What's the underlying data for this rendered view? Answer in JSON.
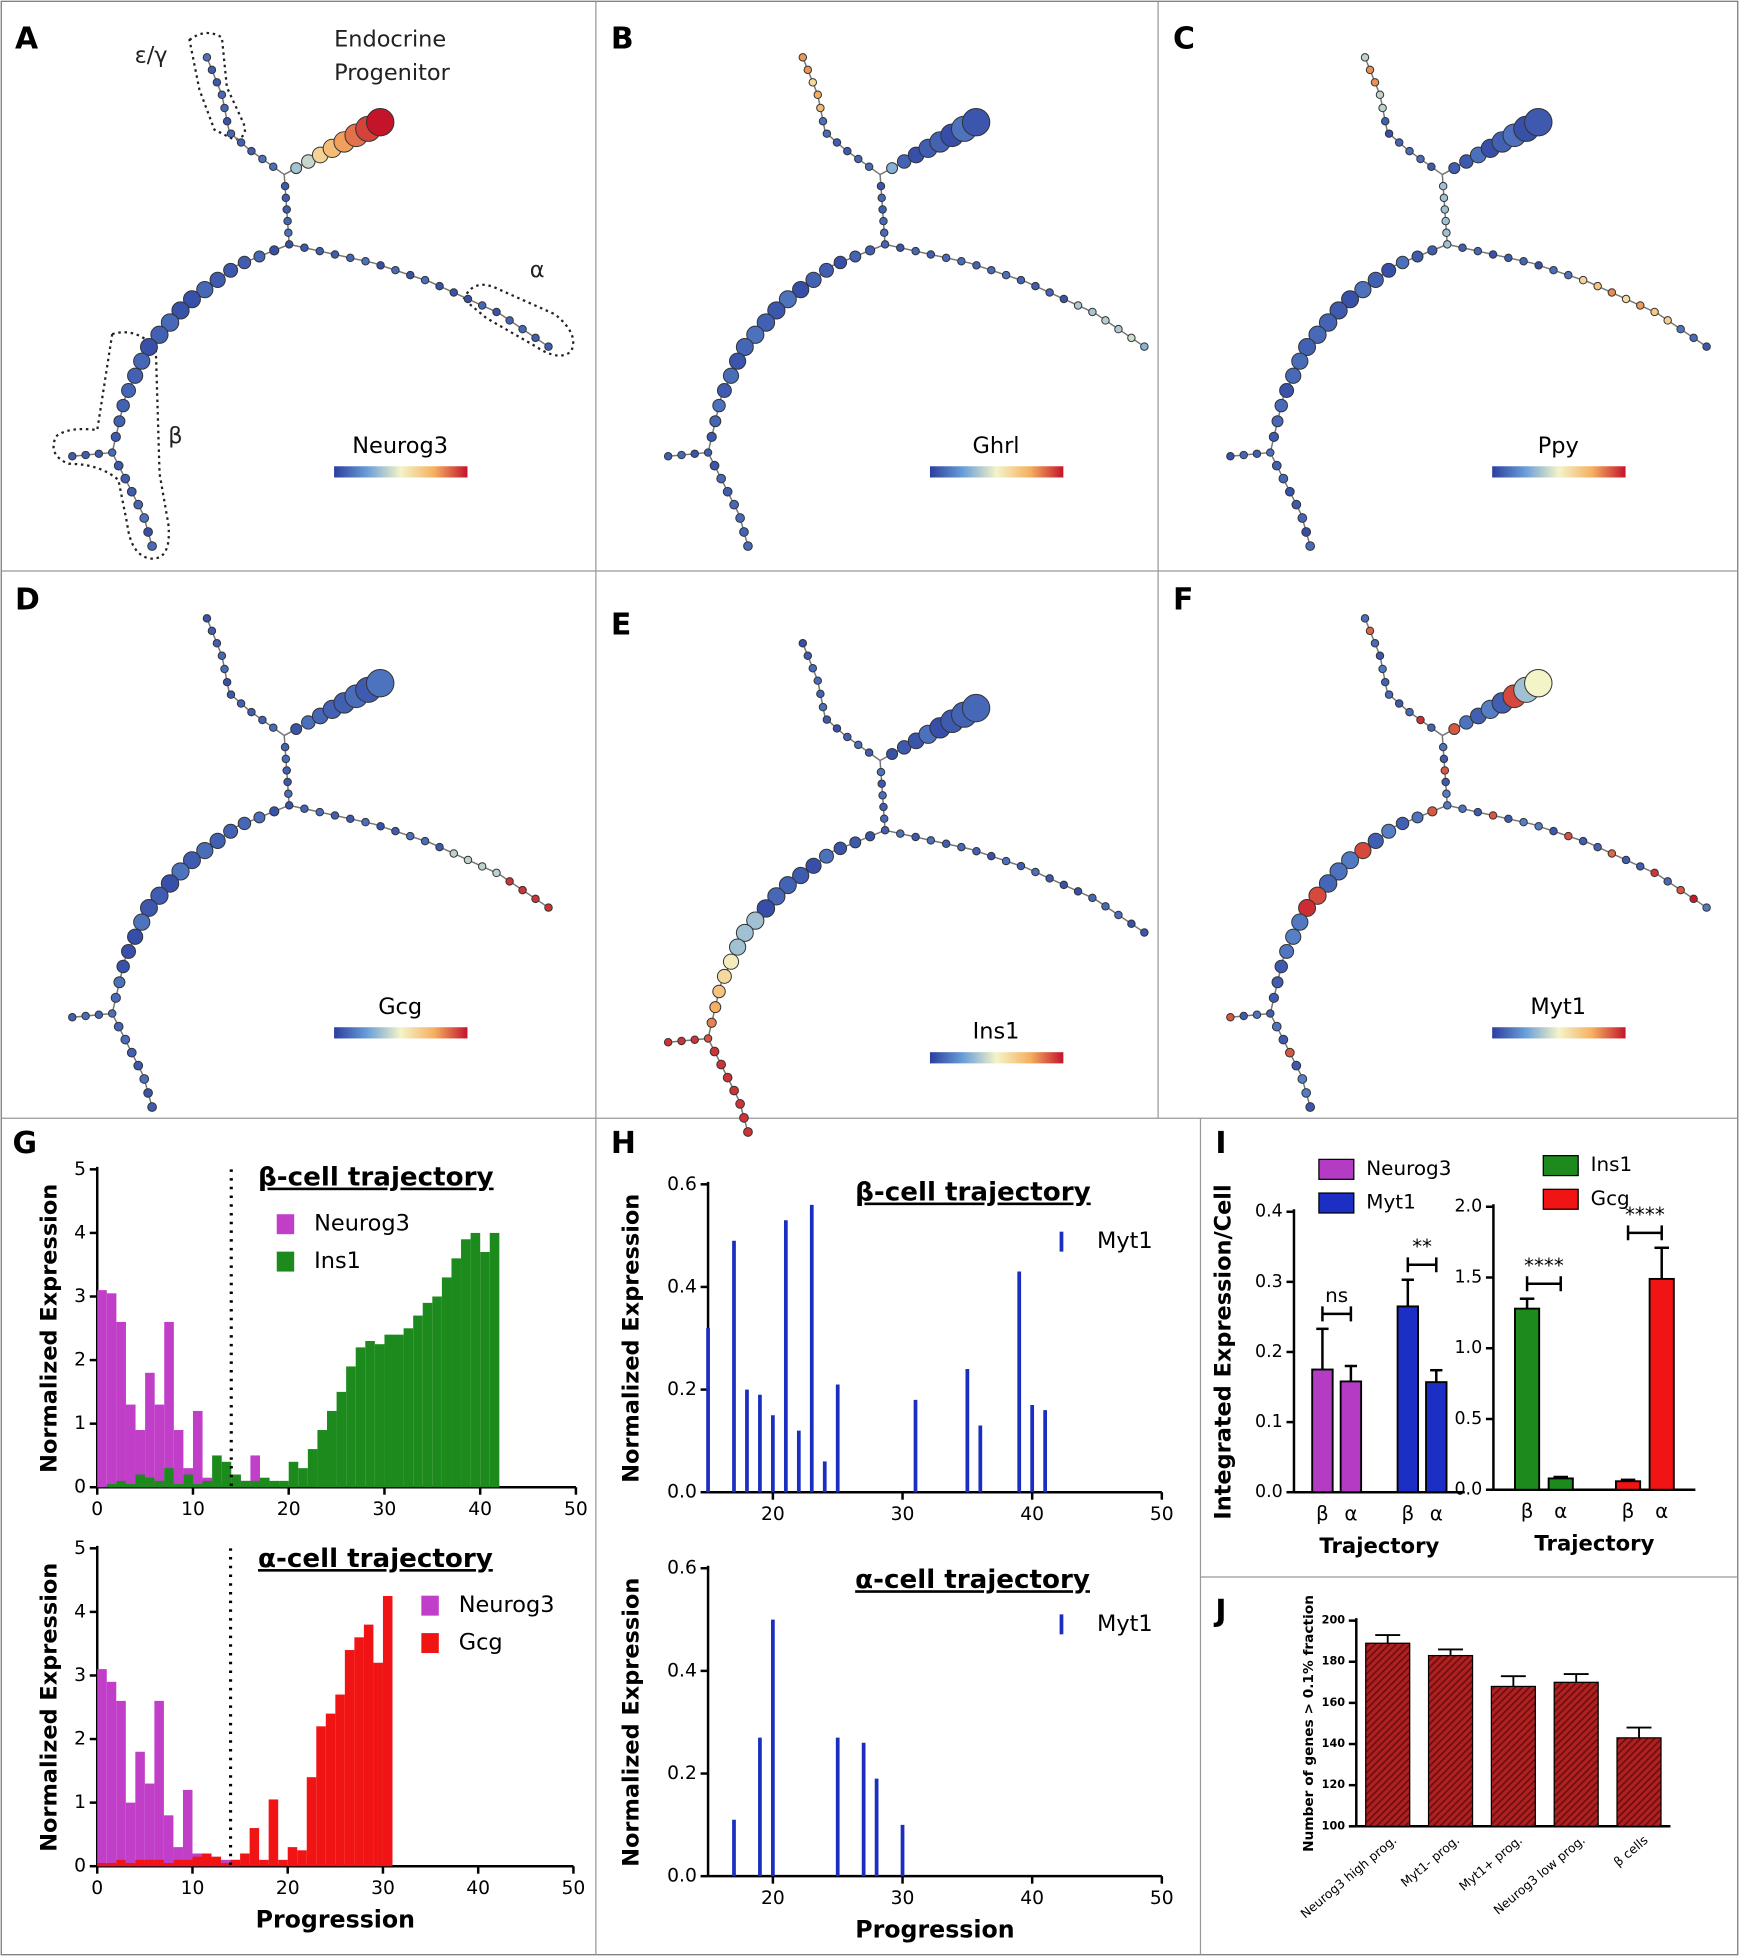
{
  "panels": [
    {
      "label": "A",
      "gene": "Neurog3"
    },
    {
      "label": "B",
      "gene": "Ghrl"
    },
    {
      "label": "C",
      "gene": "Ppy"
    },
    {
      "label": "D",
      "gene": "Gcg"
    },
    {
      "label": "E",
      "gene": "Ins1"
    },
    {
      "label": "F",
      "gene": "Myt1"
    }
  ],
  "annotations": {
    "eps_gamma": "ε/γ",
    "progenitor": [
      "Endocrine",
      "Progenitor"
    ],
    "alpha": "α",
    "beta": "β"
  },
  "chart_panels": [
    "G",
    "H",
    "I",
    "J"
  ],
  "chart_data": [
    {
      "type": "bar",
      "title": "β-cell trajectory",
      "ylabel": "Normalized Expression",
      "x": [
        0,
        1,
        2,
        3,
        4,
        5,
        6,
        7,
        8,
        9,
        10,
        11,
        12,
        13,
        14,
        15,
        16,
        17,
        18,
        19,
        20,
        21,
        22,
        23,
        24,
        25,
        26,
        27,
        28,
        29,
        30,
        31,
        32,
        33,
        34,
        35,
        36,
        37,
        38,
        39,
        40,
        41
      ],
      "series": [
        {
          "name": "Neurog3",
          "color": "#c03ec8",
          "values": [
            3.1,
            3.05,
            2.6,
            1.3,
            0.9,
            1.8,
            1.3,
            2.6,
            0.9,
            0.3,
            1.2,
            0.15,
            0.1,
            0.05,
            0.2,
            0.1,
            0.5,
            0.1,
            0.05,
            0.05,
            0,
            0,
            0,
            0,
            0,
            0,
            0,
            0,
            0,
            0,
            0,
            0,
            0,
            0,
            0,
            0,
            0,
            0,
            0,
            0,
            0,
            0
          ]
        },
        {
          "name": "Ins1",
          "color": "#1c8a1c",
          "values": [
            0,
            0.05,
            0.1,
            0.05,
            0.2,
            0.15,
            0.1,
            0.3,
            0.05,
            0.2,
            0.05,
            0.1,
            0.5,
            0.4,
            0.2,
            0.1,
            0.1,
            0.15,
            0.1,
            0.1,
            0.4,
            0.3,
            0.6,
            0.9,
            1.2,
            1.5,
            1.9,
            2.2,
            2.3,
            2.25,
            2.4,
            2.4,
            2.5,
            2.7,
            2.9,
            3.0,
            3.3,
            3.6,
            3.9,
            4.0,
            3.7,
            4.0
          ]
        }
      ],
      "xlim": [
        0,
        50
      ],
      "xticks": [
        0,
        10,
        20,
        30,
        40,
        50
      ],
      "ylim": [
        0,
        5
      ],
      "yticks": [
        0,
        1,
        2,
        3,
        4,
        5
      ],
      "vline": 14
    },
    {
      "type": "bar",
      "title": "α-cell trajectory",
      "ylabel": "Normalized Expression",
      "xlabel": "Progression",
      "x": [
        0,
        1,
        2,
        3,
        4,
        5,
        6,
        7,
        8,
        9,
        10,
        11,
        12,
        13,
        14,
        15,
        16,
        17,
        18,
        19,
        20,
        21,
        22,
        23,
        24,
        25,
        26,
        27,
        28,
        29,
        30
      ],
      "series": [
        {
          "name": "Neurog3",
          "color": "#c03ec8",
          "values": [
            3.1,
            2.9,
            2.6,
            1.0,
            1.8,
            1.3,
            2.6,
            0.8,
            0.3,
            1.2,
            0.2,
            0.1,
            0.05,
            0.1,
            0.1,
            0,
            0,
            0,
            0,
            0,
            0,
            0,
            0,
            0,
            0,
            0,
            0,
            0,
            0,
            0,
            0
          ]
        },
        {
          "name": "Gcg",
          "color": "#f01414",
          "values": [
            0.05,
            0.05,
            0.1,
            0.05,
            0.1,
            0.1,
            0.1,
            0.05,
            0.1,
            0.1,
            0.15,
            0.2,
            0.15,
            0.05,
            0.1,
            0.2,
            0.6,
            0.1,
            1.05,
            0.1,
            0.3,
            0.25,
            1.4,
            2.2,
            2.4,
            2.7,
            3.4,
            3.6,
            3.8,
            3.2,
            4.25
          ]
        }
      ],
      "xlim": [
        0,
        50
      ],
      "xticks": [
        0,
        10,
        20,
        30,
        40,
        50
      ],
      "ylim": [
        0,
        5
      ],
      "yticks": [
        0,
        1,
        2,
        3,
        4,
        5
      ],
      "vline": 14
    },
    {
      "type": "spike",
      "title": "β-cell trajectory",
      "ylabel": "Normalized Expression",
      "x": [
        15,
        17,
        18,
        19,
        20,
        21,
        22,
        23,
        24,
        25,
        31,
        35,
        36,
        39,
        40,
        41
      ],
      "series": [
        {
          "name": "Myt1",
          "color": "#1a2fc0",
          "values": [
            0.32,
            0.49,
            0.2,
            0.19,
            0.15,
            0.53,
            0.12,
            0.56,
            0.06,
            0.21,
            0.18,
            0.24,
            0.13,
            0.43,
            0.17,
            0.16
          ]
        }
      ],
      "xlim": [
        15,
        50
      ],
      "xticks": [
        20,
        30,
        40,
        50
      ],
      "ylim": [
        0,
        0.6
      ],
      "yticks": [
        {
          "value": 0,
          "label": "0.0"
        },
        0.2,
        0.4,
        0.6
      ]
    },
    {
      "type": "spike",
      "title": "α-cell trajectory",
      "ylabel": "Normalized Expression",
      "xlabel": "Progression",
      "x": [
        17,
        19,
        20,
        25,
        27,
        28,
        30
      ],
      "series": [
        {
          "name": "Myt1",
          "color": "#1a2fc0",
          "values": [
            0.11,
            0.27,
            0.5,
            0.27,
            0.26,
            0.19,
            0.1
          ]
        }
      ],
      "xlim": [
        15,
        50
      ],
      "xticks": [
        20,
        30,
        40,
        50
      ],
      "ylim": [
        0,
        0.6
      ],
      "yticks": [
        {
          "value": 0,
          "label": "0.0"
        },
        0.2,
        0.4,
        0.6
      ]
    },
    {
      "type": "groupbar",
      "ylabel": "Integrated Expression/Cell",
      "xlabel": "Trajectory",
      "categories": [
        "β",
        "α"
      ],
      "series": [
        {
          "name": "Neurog3",
          "color": "#b43cc4",
          "values": [
            0.175,
            0.158
          ],
          "errors": [
            0.058,
            0.022
          ],
          "significance": "ns"
        },
        {
          "name": "Myt1",
          "color": "#1c2fc4",
          "values": [
            0.265,
            0.157
          ],
          "errors": [
            0.038,
            0.017
          ],
          "significance": "**"
        }
      ],
      "ylim": [
        0,
        0.4
      ],
      "yticks": [
        {
          "value": 0,
          "label": "0.0"
        },
        0.1,
        0.2,
        0.3,
        0.4
      ]
    },
    {
      "type": "groupbar",
      "xlabel": "Trajectory",
      "categories": [
        "β",
        "α"
      ],
      "series": [
        {
          "name": "Ins1",
          "color": "#1c8a1c",
          "values": [
            1.28,
            0.08
          ],
          "errors": [
            0.07,
            0.01
          ],
          "significance": "****"
        },
        {
          "name": "Gcg",
          "color": "#f01414",
          "values": [
            0.06,
            1.49
          ],
          "errors": [
            0.01,
            0.22
          ],
          "significance": "****"
        }
      ],
      "ylim": [
        0,
        2
      ],
      "yticks": [
        {
          "value": 0,
          "label": "0.0"
        },
        0.5,
        {
          "value": 1,
          "label": "1.0"
        },
        1.5,
        {
          "value": 2,
          "label": "2.0"
        }
      ]
    },
    {
      "type": "bar",
      "ylabel": "Number of genes > 0.1% fraction",
      "categories": [
        "Neurog3 high prog.",
        "Myt1- prog.",
        "Myt1+ prog.",
        "Neurog3 low prog.",
        "β cells"
      ],
      "values": [
        189,
        183,
        168,
        170,
        143
      ],
      "errors": [
        4,
        3,
        5,
        4,
        5
      ],
      "color": "#b02020",
      "ylim": [
        100,
        200
      ],
      "yticks": [
        100,
        120,
        140,
        160,
        180,
        200
      ]
    }
  ]
}
